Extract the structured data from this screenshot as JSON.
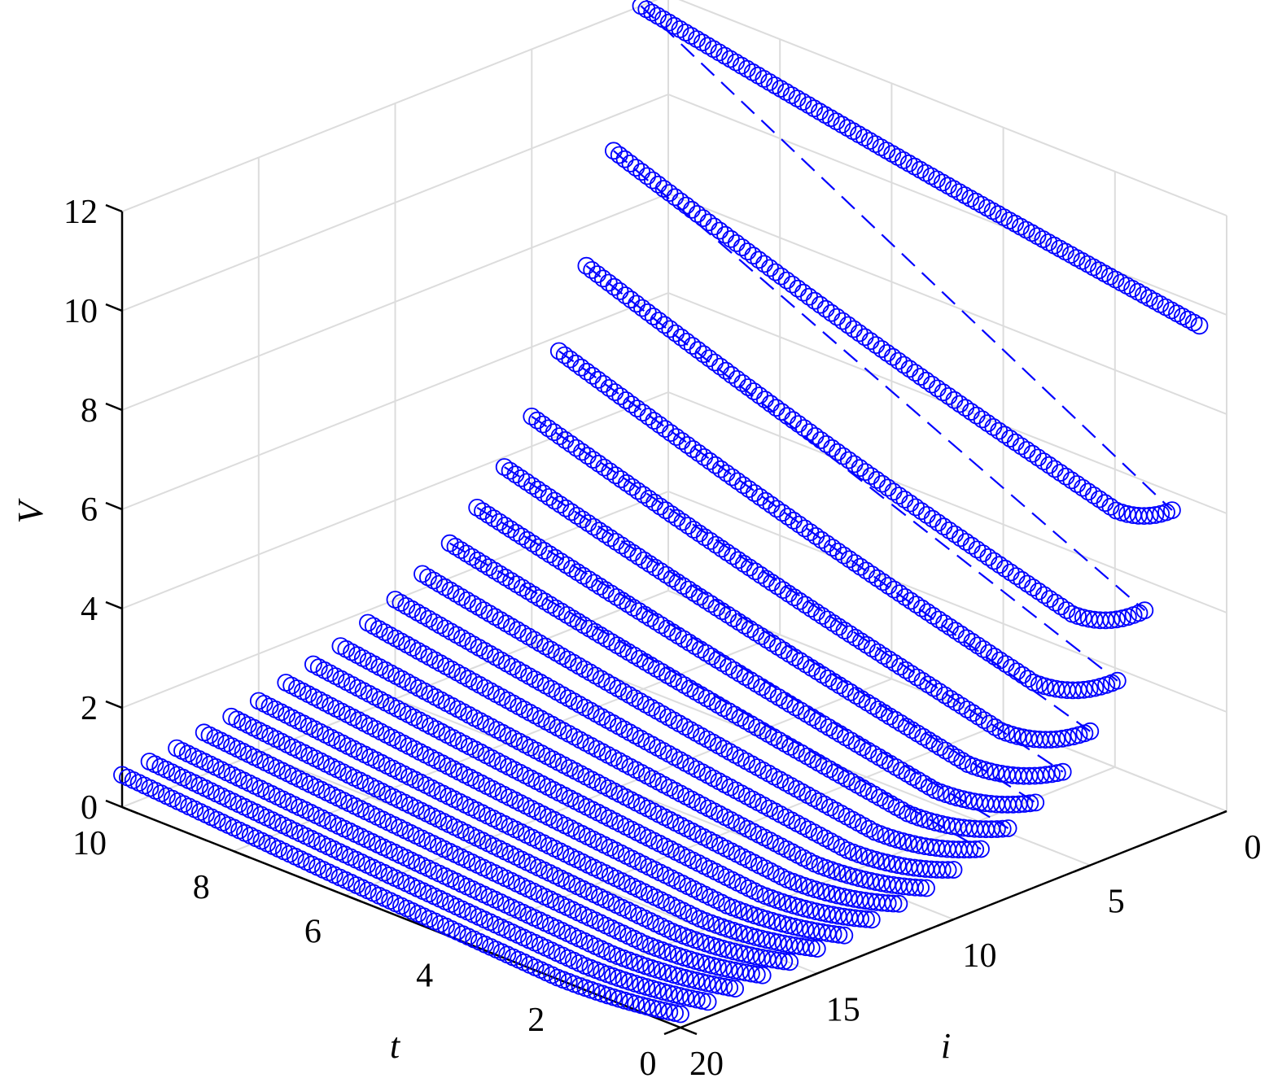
{
  "chart_data": {
    "type": "scatter",
    "view": "3d",
    "xlabel": "t",
    "ylabel": "i",
    "zlabel": "V",
    "xlim": [
      0,
      10
    ],
    "ylim": [
      0,
      20
    ],
    "zlim": [
      0,
      12
    ],
    "x_ticks": [
      "0",
      "2",
      "4",
      "6",
      "8",
      "10"
    ],
    "y_ticks": [
      "0",
      "5",
      "10",
      "15",
      "20"
    ],
    "z_ticks": [
      "0",
      "2",
      "4",
      "6",
      "8",
      "10",
      "12"
    ],
    "grid": true,
    "marker": "circle",
    "color": "#0000ff",
    "series": [
      {
        "i": 1,
        "V_at_t0": 10.0,
        "V_min": 10.0,
        "t_at_min": 0.0,
        "V_at_t10": 12.0
      },
      {
        "i": 2,
        "V_at_t0": 6.5,
        "V_min": 6.05,
        "t_at_min": 1.0,
        "V_at_t10": 9.3
      },
      {
        "i": 3,
        "V_at_t0": 4.7,
        "V_min": 4.05,
        "t_at_min": 1.3,
        "V_at_t10": 7.2
      },
      {
        "i": 4,
        "V_at_t0": 3.5,
        "V_min": 2.8,
        "t_at_min": 1.5,
        "V_at_t10": 5.7
      },
      {
        "i": 5,
        "V_at_t0": 2.7,
        "V_min": 2.0,
        "t_at_min": 1.6,
        "V_at_t10": 4.6
      },
      {
        "i": 6,
        "V_at_t0": 2.1,
        "V_min": 1.5,
        "t_at_min": 1.7,
        "V_at_t10": 3.8
      },
      {
        "i": 7,
        "V_at_t0": 1.7,
        "V_min": 1.15,
        "t_at_min": 1.8,
        "V_at_t10": 3.2
      },
      {
        "i": 8,
        "V_at_t0": 1.4,
        "V_min": 0.9,
        "t_at_min": 1.8,
        "V_at_t10": 2.7
      },
      {
        "i": 9,
        "V_at_t0": 1.2,
        "V_min": 0.7,
        "t_at_min": 1.9,
        "V_at_t10": 2.3
      },
      {
        "i": 10,
        "V_at_t0": 1.0,
        "V_min": 0.55,
        "t_at_min": 1.9,
        "V_at_t10": 2.0
      },
      {
        "i": 11,
        "V_at_t0": 0.85,
        "V_min": 0.45,
        "t_at_min": 2.0,
        "V_at_t10": 1.75
      },
      {
        "i": 12,
        "V_at_t0": 0.75,
        "V_min": 0.35,
        "t_at_min": 2.0,
        "V_at_t10": 1.5
      },
      {
        "i": 13,
        "V_at_t0": 0.65,
        "V_min": 0.28,
        "t_at_min": 2.0,
        "V_at_t10": 1.35
      },
      {
        "i": 14,
        "V_at_t0": 0.55,
        "V_min": 0.22,
        "t_at_min": 2.1,
        "V_at_t10": 1.2
      },
      {
        "i": 15,
        "V_at_t0": 0.5,
        "V_min": 0.17,
        "t_at_min": 2.1,
        "V_at_t10": 1.05
      },
      {
        "i": 16,
        "V_at_t0": 0.45,
        "V_min": 0.13,
        "t_at_min": 2.1,
        "V_at_t10": 0.95
      },
      {
        "i": 17,
        "V_at_t0": 0.4,
        "V_min": 0.1,
        "t_at_min": 2.1,
        "V_at_t10": 0.85
      },
      {
        "i": 18,
        "V_at_t0": 0.35,
        "V_min": 0.07,
        "t_at_min": 2.2,
        "V_at_t10": 0.75
      },
      {
        "i": 19,
        "V_at_t0": 0.3,
        "V_min": 0.05,
        "t_at_min": 2.2,
        "V_at_t10": 0.7
      },
      {
        "i": 20,
        "V_at_t0": 0.27,
        "V_min": 0.03,
        "t_at_min": 2.2,
        "V_at_t10": 0.65
      }
    ],
    "guide_lines": {
      "style": "dashed",
      "description_points": [
        {
          "from": {
            "t": 10,
            "i": 1,
            "V": 12.0
          },
          "to": {
            "t": 0,
            "i": 2,
            "V": 6.5
          }
        }
      ]
    }
  }
}
